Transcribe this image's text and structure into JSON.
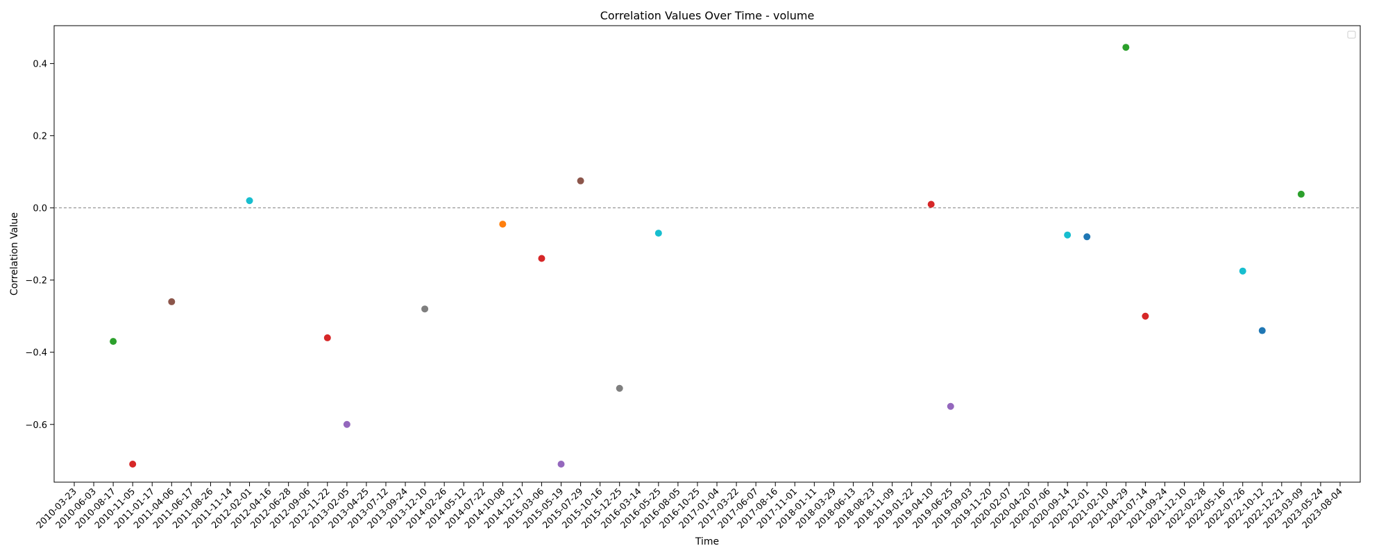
{
  "chart_data": {
    "type": "scatter",
    "title": "Correlation Values Over Time - volume",
    "xlabel": "Time",
    "ylabel": "Correlation Value",
    "ylim": [
      -0.76,
      0.505
    ],
    "y_ticks": [
      -0.6,
      -0.4,
      -0.2,
      0.0,
      0.2,
      0.4
    ],
    "y_tick_labels": [
      "−0.6",
      "−0.4",
      "−0.2",
      "0.0",
      "0.2",
      "0.4"
    ],
    "reference_line": 0.0,
    "grid": false,
    "legend_position": "top-right",
    "x_categories": [
      "2010-03-23",
      "2010-06-03",
      "2010-08-17",
      "2010-11-05",
      "2011-01-17",
      "2011-04-06",
      "2011-06-17",
      "2011-08-26",
      "2011-11-14",
      "2012-02-01",
      "2012-04-16",
      "2012-06-28",
      "2012-09-06",
      "2012-11-22",
      "2013-02-05",
      "2013-04-25",
      "2013-07-12",
      "2013-09-24",
      "2013-12-10",
      "2014-02-26",
      "2014-05-12",
      "2014-07-22",
      "2014-10-08",
      "2014-12-17",
      "2015-03-06",
      "2015-05-19",
      "2015-07-29",
      "2015-10-16",
      "2015-12-25",
      "2016-03-14",
      "2016-05-25",
      "2016-08-05",
      "2016-10-25",
      "2017-01-04",
      "2017-03-22",
      "2017-06-07",
      "2017-08-16",
      "2017-11-01",
      "2018-01-11",
      "2018-03-29",
      "2018-06-13",
      "2018-08-23",
      "2018-11-09",
      "2019-01-22",
      "2019-04-10",
      "2019-06-25",
      "2019-09-03",
      "2019-11-20",
      "2020-02-07",
      "2020-04-20",
      "2020-07-06",
      "2020-09-14",
      "2020-12-01",
      "2021-02-10",
      "2021-04-29",
      "2021-07-14",
      "2021-09-24",
      "2021-12-10",
      "2022-02-28",
      "2022-05-16",
      "2022-07-26",
      "2022-10-12",
      "2022-12-21",
      "2023-03-09",
      "2023-05-24",
      "2023-08-04"
    ],
    "points": [
      {
        "x": "2010-08-17",
        "y": -0.37,
        "color": "#2ca02c"
      },
      {
        "x": "2010-11-05",
        "y": -0.71,
        "color": "#d62728"
      },
      {
        "x": "2011-04-06",
        "y": -0.26,
        "color": "#8c564b"
      },
      {
        "x": "2012-02-01",
        "y": 0.02,
        "color": "#17becf"
      },
      {
        "x": "2012-11-22",
        "y": -0.36,
        "color": "#d62728"
      },
      {
        "x": "2013-02-05",
        "y": -0.6,
        "color": "#9467bd"
      },
      {
        "x": "2013-12-10",
        "y": -0.28,
        "color": "#7f7f7f"
      },
      {
        "x": "2014-10-08",
        "y": -0.045,
        "color": "#ff7f0e"
      },
      {
        "x": "2015-03-06",
        "y": -0.14,
        "color": "#d62728"
      },
      {
        "x": "2015-05-19",
        "y": -0.71,
        "color": "#9467bd"
      },
      {
        "x": "2015-07-29",
        "y": 0.075,
        "color": "#8c564b"
      },
      {
        "x": "2015-12-25",
        "y": -0.5,
        "color": "#7f7f7f"
      },
      {
        "x": "2016-05-25",
        "y": -0.07,
        "color": "#17becf"
      },
      {
        "x": "2019-04-10",
        "y": 0.01,
        "color": "#d62728"
      },
      {
        "x": "2019-06-25",
        "y": -0.55,
        "color": "#9467bd"
      },
      {
        "x": "2020-09-14",
        "y": -0.075,
        "color": "#17becf"
      },
      {
        "x": "2020-12-01",
        "y": -0.08,
        "color": "#1f77b4"
      },
      {
        "x": "2021-04-29",
        "y": 0.445,
        "color": "#2ca02c"
      },
      {
        "x": "2021-07-14",
        "y": -0.3,
        "color": "#d62728"
      },
      {
        "x": "2022-07-26",
        "y": -0.175,
        "color": "#17becf"
      },
      {
        "x": "2022-10-12",
        "y": -0.34,
        "color": "#1f77b4"
      },
      {
        "x": "2023-03-09",
        "y": 0.038,
        "color": "#2ca02c"
      }
    ]
  }
}
